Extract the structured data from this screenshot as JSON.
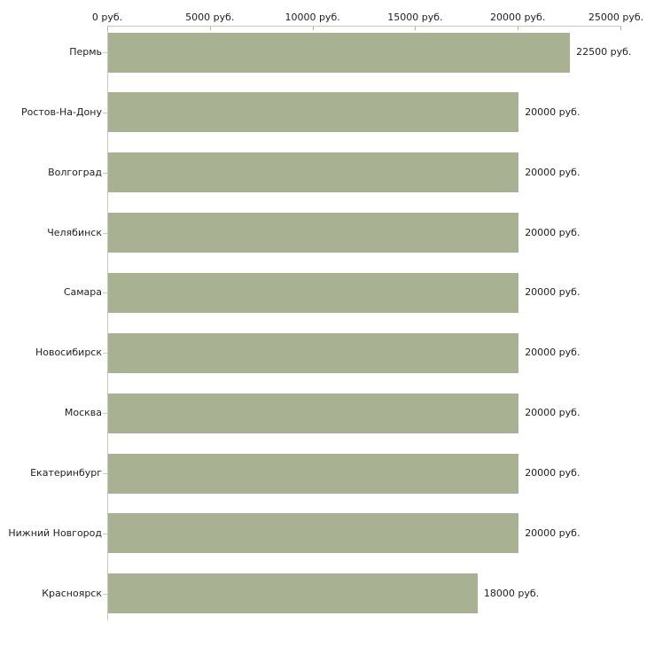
{
  "chart_data": {
    "type": "bar",
    "orientation": "horizontal",
    "title": "",
    "xlabel": "",
    "ylabel": "",
    "unit": "руб.",
    "categories": [
      "Пермь",
      "Ростов-На-Дону",
      "Волгоград",
      "Челябинск",
      "Самара",
      "Новосибирск",
      "Москва",
      "Екатеринбург",
      "Нижний Новгород",
      "Красноярск"
    ],
    "values": [
      22500,
      20000,
      20000,
      20000,
      20000,
      20000,
      20000,
      20000,
      20000,
      18000
    ],
    "value_labels": [
      "22500 руб.",
      "20000 руб.",
      "20000 руб.",
      "20000 руб.",
      "20000 руб.",
      "20000 руб.",
      "20000 руб.",
      "20000 руб.",
      "20000 руб.",
      "18000 руб."
    ],
    "x_tick_values": [
      0,
      5000,
      10000,
      15000,
      20000,
      25000
    ],
    "x_tick_labels": [
      "0 руб.",
      "5000 руб.",
      "10000 руб.",
      "15000 руб.",
      "20000 руб.",
      "25000 руб."
    ],
    "xlim": [
      0,
      25000
    ],
    "grid": false,
    "legend": null,
    "colors": {
      "bar": "#a9b193",
      "axis_line": "#c8c8bc",
      "tick_mark": "#b2b39b",
      "text": "#1e1e1e",
      "background": "#ffffff"
    }
  }
}
